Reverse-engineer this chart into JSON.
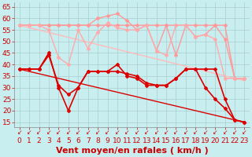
{
  "xlabel": "Vent moyen/en rafales ( km/h )",
  "background_color": "#c8eef0",
  "grid_color": "#aacccc",
  "xlim": [
    -0.5,
    23.5
  ],
  "ylim": [
    13,
    67
  ],
  "yticks": [
    15,
    20,
    25,
    30,
    35,
    40,
    45,
    50,
    55,
    60,
    65
  ],
  "xticks": [
    0,
    1,
    2,
    3,
    4,
    5,
    6,
    7,
    8,
    9,
    10,
    11,
    12,
    13,
    14,
    15,
    16,
    17,
    18,
    19,
    20,
    21,
    22,
    23
  ],
  "series": [
    {
      "name": "rafales_top1",
      "color": "#ff9999",
      "linewidth": 1.0,
      "marker": "D",
      "markersize": 2.0,
      "x": [
        0,
        1,
        2,
        3,
        4,
        5,
        6,
        7,
        8,
        9,
        10,
        11,
        12,
        13,
        14,
        15,
        16,
        17,
        18,
        19,
        20,
        21,
        22,
        23
      ],
      "y": [
        57,
        57,
        57,
        57,
        57,
        57,
        57,
        57,
        60,
        61,
        62,
        59,
        55,
        57,
        46,
        57,
        44,
        57,
        52,
        53,
        57,
        51,
        34,
        34
      ]
    },
    {
      "name": "rafales_top2",
      "color": "#ff9999",
      "linewidth": 1.0,
      "marker": "D",
      "markersize": 2.0,
      "x": [
        0,
        1,
        2,
        3,
        4,
        5,
        6,
        7,
        8,
        9,
        10,
        11,
        12,
        13,
        14,
        15,
        16,
        17,
        18,
        19,
        20,
        21,
        22,
        23
      ],
      "y": [
        57,
        57,
        57,
        57,
        57,
        57,
        57,
        57,
        57,
        57,
        57,
        57,
        57,
        57,
        57,
        57,
        57,
        57,
        57,
        57,
        57,
        57,
        34,
        34
      ]
    },
    {
      "name": "vent_moy_light",
      "color": "#ffaaaa",
      "linewidth": 1.0,
      "marker": "D",
      "markersize": 2.0,
      "x": [
        0,
        1,
        2,
        3,
        4,
        5,
        6,
        7,
        8,
        9,
        10,
        11,
        12,
        13,
        14,
        15,
        16,
        17,
        18,
        19,
        20,
        21,
        22,
        23
      ],
      "y": [
        57,
        57,
        57,
        55,
        43,
        40,
        55,
        47,
        54,
        58,
        56,
        55,
        55,
        57,
        46,
        44,
        57,
        57,
        52,
        53,
        51,
        34,
        34,
        34
      ]
    },
    {
      "name": "diagonal_light",
      "color": "#ffbbbb",
      "linewidth": 1.0,
      "marker": null,
      "x": [
        0,
        23
      ],
      "y": [
        57,
        33
      ]
    },
    {
      "name": "vent_dark1",
      "color": "#dd0000",
      "linewidth": 1.2,
      "marker": "D",
      "markersize": 2.0,
      "x": [
        0,
        1,
        2,
        3,
        4,
        5,
        6,
        7,
        8,
        9,
        10,
        11,
        12,
        13,
        14,
        15,
        16,
        17,
        18,
        19,
        20,
        21,
        22,
        23
      ],
      "y": [
        38,
        38,
        38,
        45,
        30,
        20,
        30,
        37,
        37,
        37,
        40,
        35,
        34,
        31,
        31,
        31,
        34,
        38,
        38,
        30,
        25,
        21,
        16,
        15
      ]
    },
    {
      "name": "vent_dark2",
      "color": "#dd0000",
      "linewidth": 1.2,
      "marker": "D",
      "markersize": 2.0,
      "x": [
        0,
        1,
        2,
        3,
        4,
        5,
        6,
        7,
        8,
        9,
        10,
        11,
        12,
        13,
        14,
        15,
        16,
        17,
        18,
        19,
        20,
        21,
        22,
        23
      ],
      "y": [
        38,
        38,
        38,
        44,
        31,
        27,
        30,
        37,
        37,
        37,
        37,
        36,
        35,
        32,
        31,
        31,
        34,
        38,
        38,
        38,
        38,
        25,
        16,
        15
      ]
    },
    {
      "name": "diagonal_dark",
      "color": "#dd0000",
      "linewidth": 1.0,
      "marker": null,
      "x": [
        0,
        23
      ],
      "y": [
        38,
        15
      ]
    }
  ],
  "xlabel_color": "#cc0000",
  "xlabel_fontsize": 8,
  "tick_label_fontsize": 6.5,
  "tick_label_color": "#cc0000"
}
